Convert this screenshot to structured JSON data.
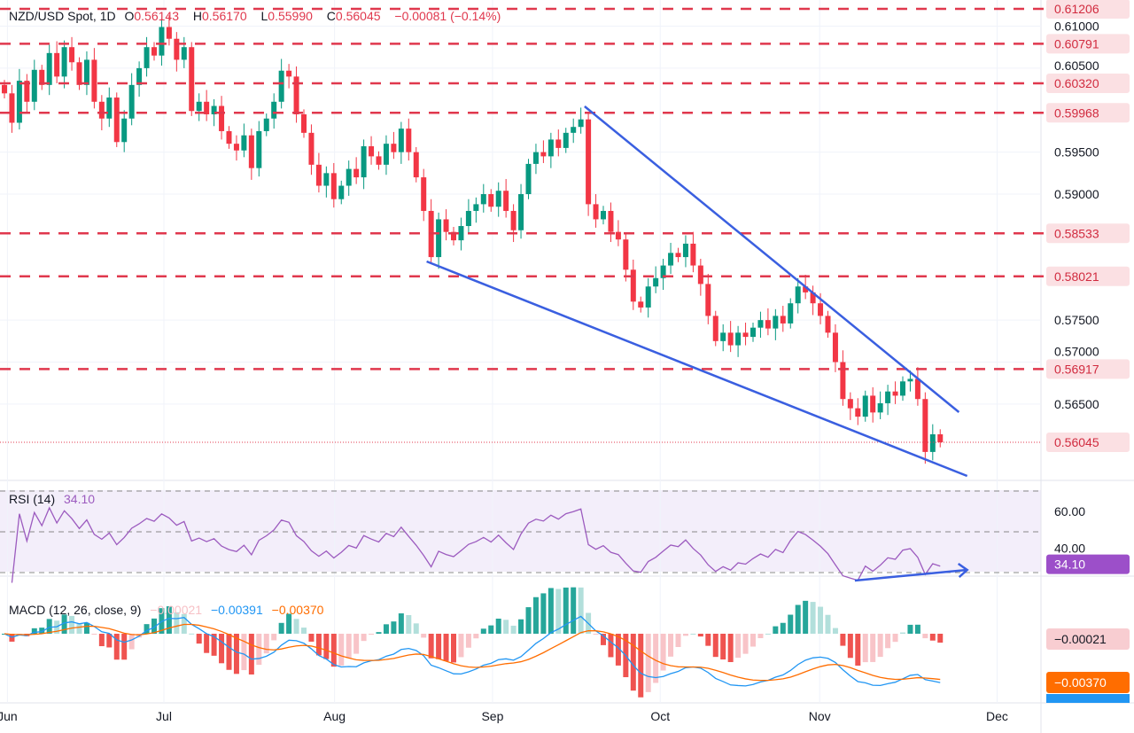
{
  "header": {
    "symbol": "NZD/USD Spot, 1D",
    "open_label": "O",
    "open": "0.56143",
    "high_label": "H",
    "high": "0.56170",
    "low_label": "L",
    "low": "0.55990",
    "close_label": "C",
    "close": "0.56045",
    "change": "−0.00081 (−0.14%)"
  },
  "rsi_legend": {
    "label": "RSI (14)",
    "value": "34.10"
  },
  "macd_legend": {
    "label": "MACD (12, 26, close, 9)",
    "hist": "−0.00021",
    "macd": "−0.00391",
    "signal": "−0.00370"
  },
  "colors": {
    "up": "#089981",
    "down": "#f23645",
    "level": "#e0384d",
    "trend": "#3a5fe0",
    "rsi": "#9c5bbf",
    "macd": "#2196f3",
    "signal": "#ff6d00",
    "hist_up": "#26a69a",
    "hist_down": "#ef5350"
  },
  "chart_data": {
    "type": "candlestick",
    "title": "NZD/USD Spot, 1D",
    "x_ticks": [
      {
        "label": "Jun",
        "bar": 0.4
      },
      {
        "label": "Jul",
        "bar": 21.3
      },
      {
        "label": "Aug",
        "bar": 44.1
      },
      {
        "label": "Sep",
        "bar": 65.2
      },
      {
        "label": "Oct",
        "bar": 87.6
      },
      {
        "label": "Nov",
        "bar": 108.9
      },
      {
        "label": "Dec",
        "bar": 132.6
      }
    ],
    "ylim": [
      0.554,
      0.613
    ],
    "y_ticks": [
      "0.61000",
      "0.60500",
      "0.59500",
      "0.59000",
      "0.57500",
      "0.57000",
      "0.56500"
    ],
    "levels": [
      "0.61206",
      "0.60791",
      "0.60320",
      "0.59968",
      "0.58533",
      "0.58021",
      "0.56917"
    ],
    "last_price": "0.56045",
    "closes": [
      0.602,
      0.5985,
      0.6035,
      0.601,
      0.6048,
      0.603,
      0.6068,
      0.604,
      0.6075,
      0.6057,
      0.603,
      0.606,
      0.601,
      0.599,
      0.6015,
      0.5962,
      0.599,
      0.603,
      0.605,
      0.6075,
      0.6065,
      0.6099,
      0.6085,
      0.606,
      0.6075,
      0.5999,
      0.601,
      0.5995,
      0.6005,
      0.5975,
      0.596,
      0.5952,
      0.597,
      0.5931,
      0.5975,
      0.599,
      0.601,
      0.6047,
      0.604,
      0.5995,
      0.5973,
      0.5935,
      0.591,
      0.5925,
      0.5894,
      0.591,
      0.593,
      0.592,
      0.5957,
      0.5945,
      0.5935,
      0.596,
      0.595,
      0.5978,
      0.595,
      0.592,
      0.588,
      0.5825,
      0.587,
      0.5855,
      0.5845,
      0.5862,
      0.588,
      0.5888,
      0.59,
      0.5885,
      0.5904,
      0.588,
      0.5857,
      0.59,
      0.5936,
      0.595,
      0.5945,
      0.5965,
      0.5955,
      0.5973,
      0.598,
      0.5989,
      0.5888,
      0.587,
      0.588,
      0.5855,
      0.5846,
      0.581,
      0.5772,
      0.5765,
      0.579,
      0.58,
      0.5815,
      0.583,
      0.5825,
      0.5841,
      0.5815,
      0.5793,
      0.5755,
      0.5725,
      0.5735,
      0.572,
      0.5735,
      0.573,
      0.5741,
      0.575,
      0.574,
      0.5755,
      0.5746,
      0.577,
      0.579,
      0.5783,
      0.577,
      0.5755,
      0.5735,
      0.57,
      0.5656,
      0.5645,
      0.5635,
      0.566,
      0.564,
      0.5651,
      0.5665,
      0.566,
      0.5677,
      0.568,
      0.5656,
      0.5593,
      0.5614,
      0.56045
    ],
    "trendlines": [
      {
        "from": [
          77.5,
          0.60045
        ],
        "to": [
          127.5,
          0.56404
        ]
      },
      {
        "from": [
          56.4,
          0.58198
        ],
        "to": [
          128.6,
          0.55644
        ]
      }
    ],
    "rsi": {
      "period": 14,
      "ylim": [
        30,
        70
      ],
      "y_ticks": [
        "60.00",
        "40.00"
      ],
      "last": "34.10",
      "divergence": {
        "from": [
          113.6,
          26.1
        ],
        "to": [
          128.6,
          31.3
        ]
      }
    },
    "macd": {
      "fast": 12,
      "slow": 26,
      "signal": 9,
      "hist_last": "−0.00021",
      "signal_last": "−0.00370",
      "macd_last": "−0.00391"
    }
  }
}
